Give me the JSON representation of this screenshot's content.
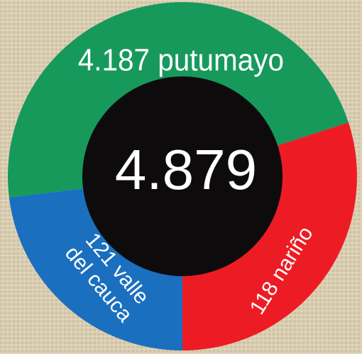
{
  "center": "4.879",
  "segments": [
    {
      "lines": [
        "4.187 putumayo"
      ],
      "color": "#17995c"
    },
    {
      "lines": [
        "118 nariño"
      ],
      "color": "#ed1c24"
    },
    {
      "lines": [
        "121 valle",
        "del cauca"
      ],
      "color": "#1a6fbf"
    }
  ],
  "hole_color": "#0e0b0d"
}
